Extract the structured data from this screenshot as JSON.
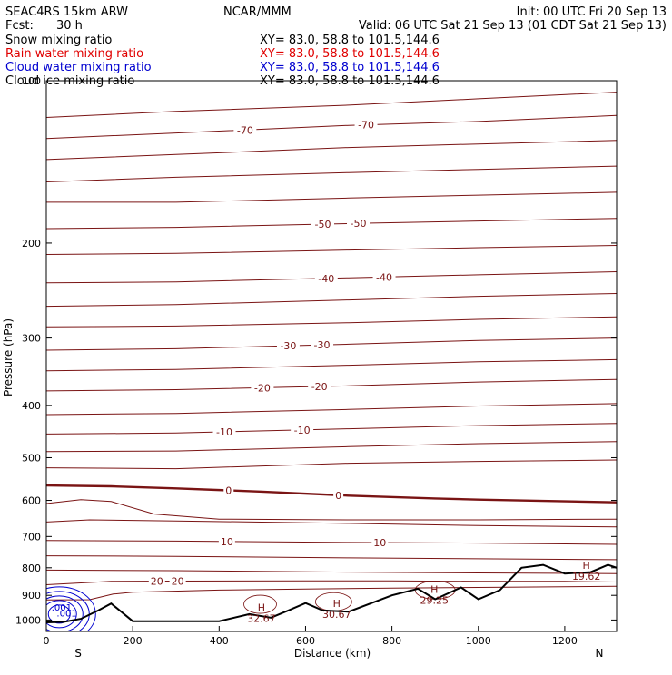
{
  "header": {
    "model": "SEAC4RS 15km ARW",
    "org": "NCAR/MMM",
    "init": "Init: 00 UTC Fri 20 Sep 13",
    "fcst_label": "Fcst:",
    "fcst_value": "30 h",
    "valid": "Valid: 06 UTC Sat 21 Sep 13 (01 CDT Sat 21 Sep 13)"
  },
  "fields": [
    {
      "name": "Snow mixing ratio",
      "xy": "XY=  83.0, 58.8 to 101.5,144.6",
      "color": "#000000"
    },
    {
      "name": "Rain water mixing ratio",
      "xy": "XY=  83.0, 58.8 to 101.5,144.6",
      "color": "#e00000"
    },
    {
      "name": "Cloud water mixing ratio",
      "xy": "XY=  83.0, 58.8 to 101.5,144.6",
      "color": "#0000d0"
    },
    {
      "name": "Cloud ice mixing ratio",
      "xy": "XY=  83.0, 58.8 to 101.5,144.6",
      "color": "#000000"
    }
  ],
  "colors": {
    "isotherm": "#7a1414",
    "terrain": "#000000",
    "cloud_water": "#0000d0",
    "rain_water": "#e00000"
  },
  "chart_data": {
    "type": "line",
    "title": "",
    "xlabel": "Distance (km)",
    "ylabel": "Pressure (hPa)",
    "xlim": [
      0,
      1320
    ],
    "ylim": [
      1050,
      100
    ],
    "y_scale": "log",
    "grid": false,
    "legend": "top-left",
    "x_ticks": [
      0,
      200,
      400,
      600,
      800,
      1000,
      1200
    ],
    "y_ticks": [
      200,
      300,
      400,
      500,
      600,
      700,
      800,
      900,
      1000
    ],
    "y_extra_tick_label": "100",
    "end_labels": {
      "left": "S",
      "right": "N"
    },
    "isotherms": [
      {
        "points": [
          [
            0,
            117
          ],
          [
            300,
            114
          ],
          [
            700,
            111
          ],
          [
            1000,
            108
          ],
          [
            1320,
            105
          ]
        ]
      },
      {
        "points": [
          [
            0,
            128
          ],
          [
            300,
            125
          ],
          [
            700,
            121
          ],
          [
            1000,
            119
          ],
          [
            1320,
            116
          ]
        ],
        "labels": [
          {
            "text": "-70",
            "x": 460
          },
          {
            "text": "-70",
            "x": 740
          }
        ]
      },
      {
        "points": [
          [
            0,
            140
          ],
          [
            300,
            137
          ],
          [
            700,
            133
          ],
          [
            1000,
            131
          ],
          [
            1320,
            129
          ]
        ]
      },
      {
        "points": [
          [
            0,
            154
          ],
          [
            300,
            151
          ],
          [
            700,
            148
          ],
          [
            1000,
            146
          ],
          [
            1320,
            144
          ]
        ]
      },
      {
        "points": [
          [
            0,
            168
          ],
          [
            300,
            168
          ],
          [
            700,
            165
          ],
          [
            1000,
            163
          ],
          [
            1320,
            161
          ]
        ]
      },
      {
        "points": [
          [
            0,
            188
          ],
          [
            300,
            187
          ],
          [
            700,
            184
          ],
          [
            1000,
            182
          ],
          [
            1320,
            180
          ]
        ],
        "labels": [
          {
            "text": "-50",
            "x": 640
          },
          {
            "text": "-50",
            "x": 722
          }
        ]
      },
      {
        "points": [
          [
            0,
            210
          ],
          [
            300,
            209
          ],
          [
            700,
            206
          ],
          [
            1000,
            204
          ],
          [
            1320,
            202
          ]
        ]
      },
      {
        "points": [
          [
            0,
            237
          ],
          [
            300,
            236
          ],
          [
            700,
            232
          ],
          [
            1000,
            229
          ],
          [
            1320,
            226
          ]
        ],
        "labels": [
          {
            "text": "-40",
            "x": 648
          },
          {
            "text": "-40",
            "x": 782
          }
        ]
      },
      {
        "points": [
          [
            0,
            262
          ],
          [
            300,
            260
          ],
          [
            700,
            255
          ],
          [
            1000,
            251
          ],
          [
            1320,
            248
          ]
        ]
      },
      {
        "points": [
          [
            0,
            286
          ],
          [
            300,
            285
          ],
          [
            700,
            281
          ],
          [
            1000,
            277
          ],
          [
            1320,
            274
          ]
        ]
      },
      {
        "points": [
          [
            0,
            316
          ],
          [
            300,
            314
          ],
          [
            700,
            308
          ],
          [
            1000,
            303
          ],
          [
            1320,
            300
          ]
        ],
        "labels": [
          {
            "text": "-30",
            "x": 560
          },
          {
            "text": "-30",
            "x": 638
          }
        ]
      },
      {
        "points": [
          [
            0,
            345
          ],
          [
            300,
            343
          ],
          [
            700,
            337
          ],
          [
            1000,
            332
          ],
          [
            1320,
            329
          ]
        ]
      },
      {
        "points": [
          [
            0,
            376
          ],
          [
            300,
            374
          ],
          [
            700,
            368
          ],
          [
            1000,
            362
          ],
          [
            1320,
            358
          ]
        ],
        "labels": [
          {
            "text": "-20",
            "x": 500
          },
          {
            "text": "-20",
            "x": 632
          }
        ]
      },
      {
        "points": [
          [
            0,
            416
          ],
          [
            300,
            414
          ],
          [
            700,
            407
          ],
          [
            1000,
            401
          ],
          [
            1320,
            397
          ]
        ]
      },
      {
        "points": [
          [
            0,
            452
          ],
          [
            300,
            450
          ],
          [
            700,
            442
          ],
          [
            1000,
            436
          ],
          [
            1320,
            432
          ]
        ],
        "labels": [
          {
            "text": "-10",
            "x": 412
          },
          {
            "text": "-10",
            "x": 592
          }
        ]
      },
      {
        "points": [
          [
            0,
            487
          ],
          [
            300,
            486
          ],
          [
            700,
            477
          ],
          [
            1000,
            471
          ],
          [
            1320,
            467
          ]
        ]
      },
      {
        "points": [
          [
            0,
            522
          ],
          [
            300,
            524
          ],
          [
            700,
            512
          ],
          [
            1000,
            508
          ],
          [
            1320,
            505
          ]
        ]
      },
      {
        "points": [
          [
            0,
            563
          ],
          [
            150,
            565
          ],
          [
            300,
            570
          ],
          [
            500,
            578
          ],
          [
            700,
            588
          ],
          [
            900,
            595
          ],
          [
            1000,
            598
          ],
          [
            1320,
            605
          ]
        ],
        "bold": true,
        "labels": [
          {
            "text": "0",
            "x": 422
          },
          {
            "text": "0",
            "x": 676
          }
        ]
      },
      {
        "points": [
          [
            0,
            608
          ],
          [
            80,
            598
          ],
          [
            150,
            603
          ],
          [
            250,
            636
          ],
          [
            400,
            650
          ],
          [
            700,
            652
          ],
          [
            1000,
            652
          ],
          [
            1320,
            650
          ]
        ]
      },
      {
        "points": [
          [
            0,
            658
          ],
          [
            100,
            652
          ],
          [
            300,
            655
          ],
          [
            700,
            662
          ],
          [
            1000,
            668
          ],
          [
            1320,
            672
          ]
        ]
      },
      {
        "points": [
          [
            0,
            712
          ],
          [
            300,
            714
          ],
          [
            700,
            718
          ],
          [
            1000,
            720
          ],
          [
            1320,
            724
          ]
        ],
        "labels": [
          {
            "text": "10",
            "x": 418
          },
          {
            "text": "10",
            "x": 772
          }
        ]
      },
      {
        "points": [
          [
            0,
            760
          ],
          [
            300,
            762
          ],
          [
            700,
            767
          ],
          [
            1000,
            770
          ],
          [
            1320,
            773
          ]
        ]
      },
      {
        "points": [
          [
            0,
            808
          ],
          [
            300,
            810
          ],
          [
            700,
            815
          ],
          [
            1000,
            818
          ],
          [
            1320,
            820
          ]
        ]
      },
      {
        "points": [
          [
            0,
            860
          ],
          [
            150,
            848
          ],
          [
            300,
            847
          ],
          [
            600,
            846
          ],
          [
            800,
            846
          ],
          [
            1000,
            848
          ],
          [
            1200,
            848
          ],
          [
            1320,
            850
          ]
        ],
        "labels": [
          {
            "text": "20",
            "x": 256
          },
          {
            "text": "20",
            "x": 304
          }
        ]
      },
      {
        "points": [
          [
            0,
            918
          ],
          [
            100,
            917
          ],
          [
            155,
            895
          ],
          [
            200,
            888
          ],
          [
            400,
            880
          ],
          [
            600,
            876
          ],
          [
            800,
            873
          ],
          [
            1000,
            870
          ],
          [
            1320,
            866
          ]
        ]
      }
    ],
    "terrain": [
      [
        0,
        1010
      ],
      [
        40,
        1008
      ],
      [
        80,
        995
      ],
      [
        120,
        960
      ],
      [
        150,
        932
      ],
      [
        200,
        1005
      ],
      [
        400,
        1005
      ],
      [
        470,
        975
      ],
      [
        520,
        990
      ],
      [
        560,
        960
      ],
      [
        600,
        930
      ],
      [
        640,
        960
      ],
      [
        700,
        965
      ],
      [
        800,
        900
      ],
      [
        860,
        875
      ],
      [
        900,
        915
      ],
      [
        960,
        870
      ],
      [
        1000,
        915
      ],
      [
        1050,
        880
      ],
      [
        1100,
        800
      ],
      [
        1150,
        790
      ],
      [
        1200,
        820
      ],
      [
        1260,
        815
      ],
      [
        1300,
        790
      ],
      [
        1320,
        800
      ]
    ],
    "pressure_highs": [
      {
        "label": "H",
        "value": "32.67",
        "x": 498,
        "p": 962
      },
      {
        "label": "H",
        "value": "30.67",
        "x": 672,
        "p": 946
      },
      {
        "label": "H",
        "value": "29.25",
        "x": 898,
        "p": 890
      },
      {
        "label": "H",
        "value": "19.62",
        "x": 1250,
        "p": 803
      }
    ],
    "cloud_water_labels": [
      {
        "text": ".001",
        "x": 12,
        "p": 960
      },
      {
        "text": ".001",
        "x": 24,
        "p": 985
      }
    ]
  }
}
